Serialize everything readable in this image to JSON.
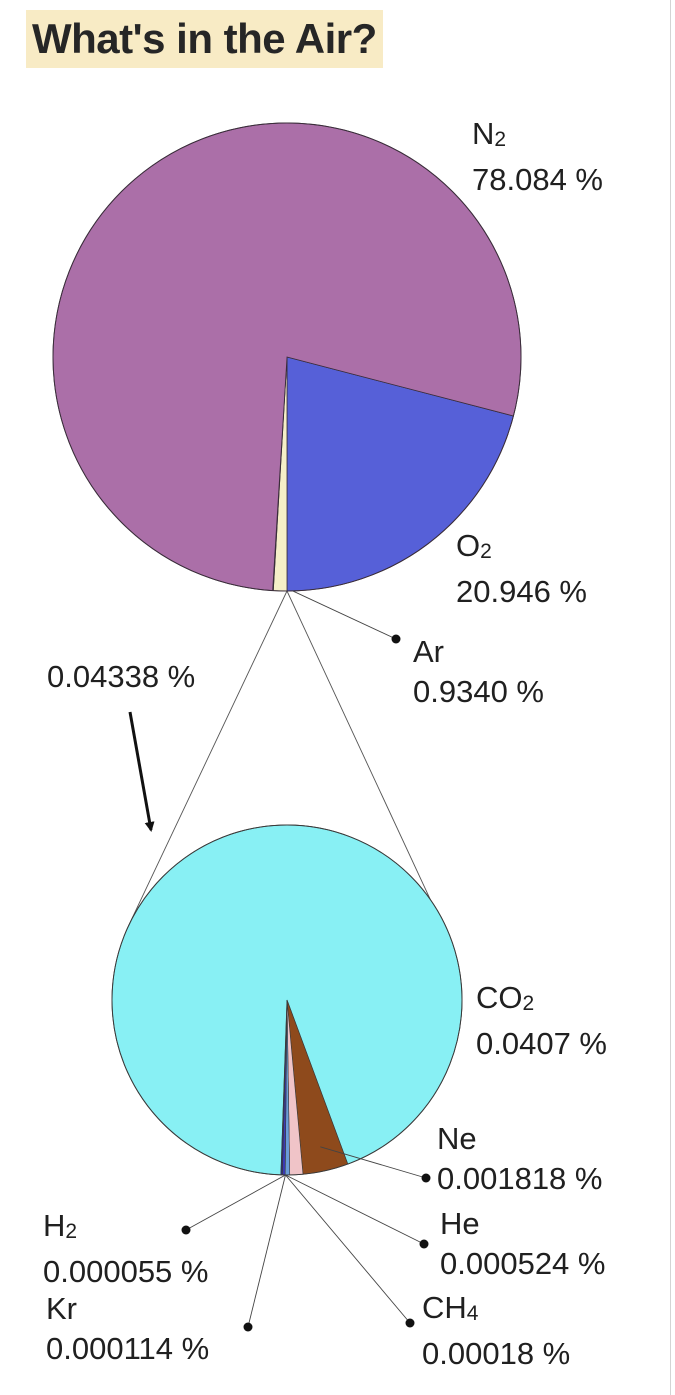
{
  "title": "What's in the Air?",
  "colors": {
    "title_bg": "#f8ebc5",
    "nitrogen": "#ab6fa8",
    "oxygen": "#5660d8",
    "argon": "#f5efc8",
    "carbon_dioxide": "#88f0f4",
    "neon": "#8e4a1c",
    "helium": "#f0c4c8",
    "methane": "#6a9cd8",
    "krypton": "#3a3ab4",
    "hydrogen": "#2a2a8a"
  },
  "chart_data": [
    {
      "type": "pie",
      "slices": [
        {
          "symbol": "N",
          "sub": "2",
          "value": 78.084,
          "label": "78.084 %"
        },
        {
          "symbol": "O",
          "sub": "2",
          "value": 20.946,
          "label": "20.946 %"
        },
        {
          "symbol": "Ar",
          "sub": "",
          "value": 0.934,
          "label": "0.9340 %"
        },
        {
          "symbol": "",
          "sub": "",
          "value": 0.04338,
          "label": "0.04338 %"
        }
      ]
    },
    {
      "type": "pie",
      "slices": [
        {
          "symbol": "CO",
          "sub": "2",
          "value": 0.0407,
          "label": "0.0407 %"
        },
        {
          "symbol": "Ne",
          "sub": "",
          "value": 0.001818,
          "label": "0.001818 %"
        },
        {
          "symbol": "He",
          "sub": "",
          "value": 0.000524,
          "label": "0.000524 %"
        },
        {
          "symbol": "CH",
          "sub": "4",
          "value": 0.00018,
          "label": "0.00018 %"
        },
        {
          "symbol": "Kr",
          "sub": "",
          "value": 0.000114,
          "label": "0.000114 %"
        },
        {
          "symbol": "H",
          "sub": "2",
          "value": 5.5e-05,
          "label": "0.000055 %"
        }
      ]
    }
  ]
}
